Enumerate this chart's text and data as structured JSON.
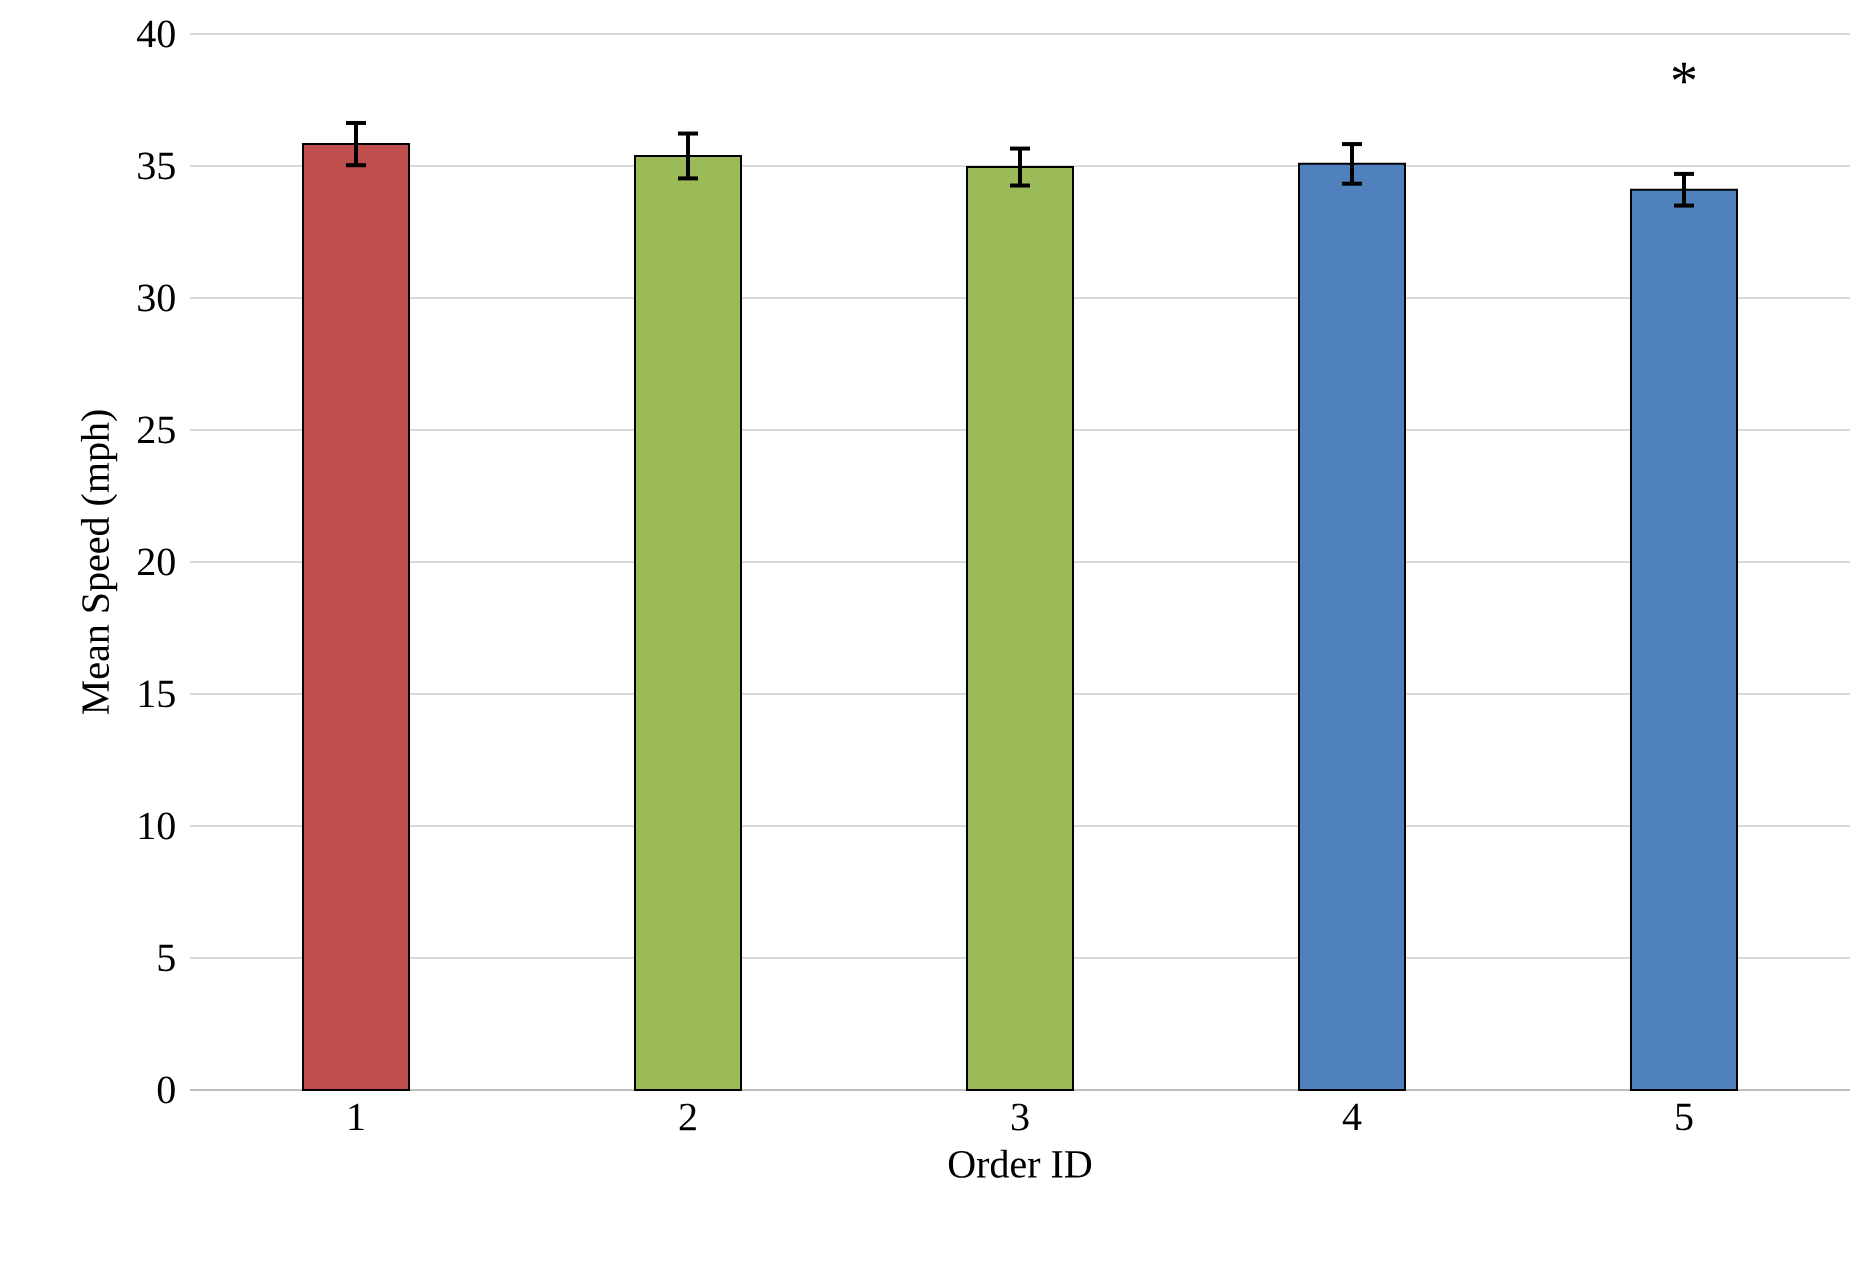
{
  "chart_data": {
    "type": "bar",
    "xlabel": "Order ID",
    "ylabel": "Mean Speed (mph)",
    "categories": [
      "1",
      "2",
      "3",
      "4",
      "5"
    ],
    "values": [
      35.83,
      35.38,
      34.96,
      35.08,
      34.1
    ],
    "errors": [
      0.8,
      0.85,
      0.7,
      0.75,
      0.6
    ],
    "colors": [
      "#c0504d",
      "#9bbb59",
      "#9bbb59",
      "#4f81bd",
      "#4f81bd"
    ],
    "ylim": [
      0,
      40
    ],
    "yticks": [
      0,
      5,
      10,
      15,
      20,
      25,
      30,
      35,
      40
    ],
    "grid": "y",
    "annotations": [
      "*"
    ]
  }
}
